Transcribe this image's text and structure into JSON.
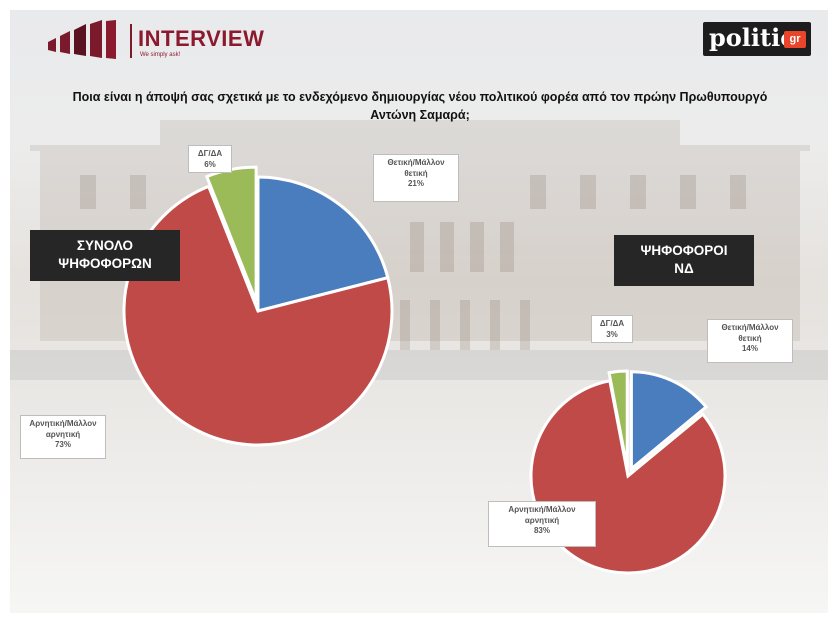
{
  "header": {
    "logo_title": "INTERVIEW",
    "logo_tagline": "We simply ask!",
    "politic_logo": "politic",
    "politic_logo_suffix": "gr"
  },
  "question": "Ποια είναι η άποψή σας σχετικά με το ενδεχόμενο δημιουργίας νέου πολιτικού φορέα από τον πρώην Πρωθυπουργό Αντώνη Σαμαρά;",
  "colors": {
    "positive": "#4a7dbd",
    "negative": "#c04a48",
    "dont_know": "#9bbb59"
  },
  "chart_data": [
    {
      "type": "pie",
      "title": "ΣΥΝΟΛΟ ΨΗΦΟΦΟΡΩΝ",
      "categories": [
        "Θετική/Μάλλον θετική",
        "Αρνητική/Μάλλον αρνητική",
        "ΔΓ/ΔΑ"
      ],
      "values": [
        21,
        73,
        6
      ],
      "labels": {
        "positive": {
          "line1": "Θετική/Μάλλον",
          "line2": "θετική",
          "pct": "21%"
        },
        "negative": {
          "line1": "Αρνητική/Μάλλον",
          "line2": "αρνητική",
          "pct": "73%"
        },
        "dont_know": {
          "line1": "ΔΓ/ΔΑ",
          "pct": "6%"
        }
      }
    },
    {
      "type": "pie",
      "title": "ΨΗΦΟΦΟΡΟΙ ΝΔ",
      "categories": [
        "Θετική/Μάλλον θετική",
        "Αρνητική/Μάλλον αρνητική",
        "ΔΓ/ΔΑ"
      ],
      "values": [
        14,
        83,
        3
      ],
      "labels": {
        "positive": {
          "line1": "Θετική/Μάλλον",
          "line2": "θετική",
          "pct": "14%"
        },
        "negative": {
          "line1": "Αρνητική/Μάλλον",
          "line2": "αρνητική",
          "pct": "83%"
        },
        "dont_know": {
          "line1": "ΔΓ/ΔΑ",
          "pct": "3%"
        }
      }
    }
  ],
  "labels": {
    "total_line1": "ΣΥΝΟΛΟ",
    "total_line2": "ΨΗΦΟΦΟΡΩΝ",
    "nd_line1": "ΨΗΦΟΦΟΡΟΙ",
    "nd_line2": "ΝΔ"
  }
}
